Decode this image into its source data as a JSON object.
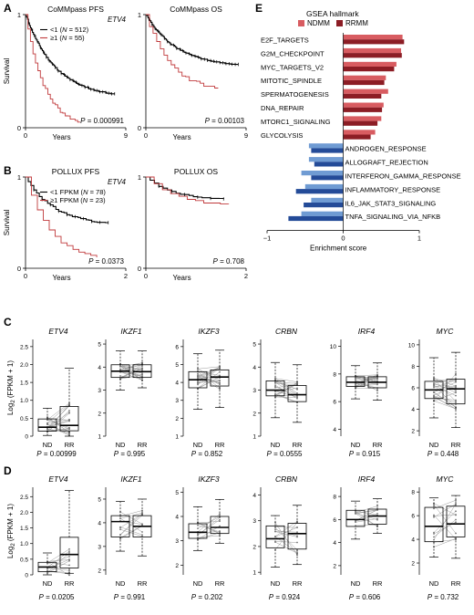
{
  "panel_letters": {
    "a": "A",
    "b": "B",
    "c": "C",
    "d": "D",
    "e": "E"
  },
  "colors": {
    "black": "#000000",
    "red": "#c0393b",
    "ndmm": "#d85c61",
    "rrmm": "#8c1d25",
    "blue_light": "#6f9bd3",
    "blue_dark": "#244b98",
    "box_fill": "#ffffff"
  },
  "survival": {
    "ylabel": "Survival",
    "xlabel": "Years",
    "panels": [
      {
        "id": "a_pfs",
        "title": "CoMMpass PFS",
        "gene": "ETV4",
        "legend": [
          {
            "pre": "<1 (",
            "mid": "N",
            "post": " = 512)"
          },
          {
            "pre": "≥1 (",
            "mid": "N",
            "post": " = 55)"
          }
        ],
        "xticks": [
          "0",
          "9"
        ],
        "xmax": 9,
        "p_label": "P",
        "p_value": " = 0.000991"
      },
      {
        "id": "a_os",
        "title": "CoMMpass OS",
        "xticks": [
          "0",
          "9"
        ],
        "xmax": 9,
        "p_label": "P",
        "p_value": " = 0.00103"
      },
      {
        "id": "b_pfs",
        "title": "POLLUX PFS",
        "gene": "ETV4",
        "legend": [
          {
            "pre": "<1 FPKM (",
            "mid": "N",
            "post": " = 78)"
          },
          {
            "pre": "≥1 FPKM (",
            "mid": "N",
            "post": " = 23)"
          }
        ],
        "xticks": [
          "0",
          "2"
        ],
        "xmax": 2,
        "p_label": "P",
        "p_value": " = 0.0373"
      },
      {
        "id": "b_os",
        "title": "POLLUX OS",
        "xticks": [
          "0",
          "2"
        ],
        "xmax": 2,
        "p_label": "P",
        "p_value": " = 0.708"
      }
    ],
    "yticks": [
      "0",
      "1"
    ]
  },
  "gsea": {
    "title": "GSEA hallmark",
    "legend": [
      "NDMM",
      "RRMM"
    ],
    "xlabel": "Enrichment score",
    "xticks": [
      "−1",
      "0",
      "1"
    ],
    "chart_data": {
      "type": "bar",
      "orientation": "horizontal",
      "categories": [
        "E2F_TARGETS",
        "G2M_CHECKPOINT",
        "MYC_TARGETS_V2",
        "MITOTIC_SPINDLE",
        "SPERMATOGENESIS",
        "DNA_REPAIR",
        "MTORC1_SIGNALING",
        "GLYCOLYSIS",
        "ANDROGEN_RESPONSE",
        "ALLOGRAFT_REJECTION",
        "INTERFERON_GAMMA_RESPONSE",
        "INFLAMMATORY_RESPONSE",
        "IL6_JAK_STAT3_SIGNALING",
        "TNFA_SIGNALING_VIA_NFKB"
      ],
      "series": [
        {
          "name": "NDMM",
          "values": [
            0.78,
            0.76,
            0.7,
            0.56,
            0.59,
            0.53,
            0.5,
            0.42,
            -0.45,
            -0.45,
            -0.55,
            -0.5,
            -0.42,
            -0.55
          ]
        },
        {
          "name": "RRMM",
          "values": [
            0.8,
            0.77,
            0.67,
            0.54,
            0.5,
            0.51,
            0.45,
            0.36,
            -0.42,
            -0.38,
            -0.42,
            -0.62,
            -0.52,
            -0.72
          ]
        }
      ],
      "xlim": [
        -1,
        1
      ]
    }
  },
  "boxplots": {
    "ylabel_pre": "Log",
    "ylabel_sub": "2",
    "ylabel_post": " (FPKM + 1)",
    "xcats": [
      "ND",
      "RR"
    ],
    "p_label": "P",
    "rows": [
      {
        "panels": [
          {
            "gene": "ETV4",
            "ticks": [
              "0",
              "0.5",
              "1.0",
              "1.5",
              "2.0",
              "2.5"
            ],
            "ylim": [
              0,
              2.7
            ],
            "p_value": " = 0.00999",
            "nd": [
              0.02,
              0.14,
              0.25,
              0.48,
              0.78
            ],
            "rr": [
              0.0,
              0.15,
              0.3,
              0.83,
              1.9
            ]
          },
          {
            "gene": "IKZF1",
            "ticks": [
              "1",
              "2",
              "3",
              "4",
              "5"
            ],
            "ylim": [
              1,
              5.2
            ],
            "p_value": " = 0.995",
            "nd": [
              3.0,
              3.55,
              3.82,
              4.1,
              4.7
            ],
            "rr": [
              3.1,
              3.55,
              3.8,
              4.1,
              4.7
            ]
          },
          {
            "gene": "IKZF3",
            "ticks": [
              "1",
              "2",
              "3",
              "4",
              "5",
              "6"
            ],
            "ylim": [
              1,
              6.4
            ],
            "p_value": " = 0.852",
            "nd": [
              2.5,
              3.7,
              4.15,
              4.6,
              5.6
            ],
            "rr": [
              2.6,
              3.8,
              4.3,
              4.7,
              5.8
            ]
          },
          {
            "gene": "CRBN",
            "ticks": [
              "1",
              "2",
              "3",
              "4",
              "5"
            ],
            "ylim": [
              1,
              5.2
            ],
            "p_value": " = 0.0555",
            "nd": [
              1.8,
              2.75,
              3.0,
              3.4,
              4.2
            ],
            "rr": [
              1.6,
              2.5,
              2.8,
              3.2,
              4.1
            ]
          },
          {
            "gene": "IRF4",
            "ticks": [
              "4",
              "6",
              "8",
              "10"
            ],
            "ylim": [
              3.5,
              10.5
            ],
            "p_value": " = 0.915",
            "nd": [
              6.2,
              7.1,
              7.4,
              7.8,
              8.6
            ],
            "rr": [
              6.1,
              7.0,
              7.4,
              7.8,
              8.8
            ]
          },
          {
            "gene": "MYC",
            "ticks": [
              "2",
              "4",
              "6",
              "8",
              "10"
            ],
            "ylim": [
              1.5,
              10.5
            ],
            "p_value": " = 0.448",
            "nd": [
              3.2,
              5.0,
              5.8,
              6.6,
              8.8
            ],
            "rr": [
              2.3,
              4.5,
              5.9,
              6.8,
              9.3
            ]
          }
        ]
      },
      {
        "panels": [
          {
            "gene": "ETV4",
            "ticks": [
              "0",
              "0.5",
              "1.0",
              "1.5",
              "2.0",
              "2.5"
            ],
            "ylim": [
              0,
              2.8
            ],
            "p_value": " = 0.0205",
            "nd": [
              0.0,
              0.1,
              0.25,
              0.4,
              0.7
            ],
            "rr": [
              0.05,
              0.22,
              0.65,
              1.2,
              2.7
            ]
          },
          {
            "gene": "IKZF1",
            "ticks": [
              "2",
              "3",
              "4",
              "5"
            ],
            "ylim": [
              1.8,
              5.5
            ],
            "p_value": " = 0.991",
            "nd": [
              2.8,
              3.4,
              4.05,
              4.3,
              4.9
            ],
            "rr": [
              2.6,
              3.4,
              3.85,
              4.3,
              5.0
            ]
          },
          {
            "gene": "IKZF3",
            "ticks": [
              "2",
              "3",
              "4",
              "5"
            ],
            "ylim": [
              1.6,
              5.2
            ],
            "p_value": " = 0.202",
            "nd": [
              2.6,
              3.1,
              3.35,
              3.7,
              4.4
            ],
            "rr": [
              2.9,
              3.3,
              3.55,
              4.0,
              4.7
            ]
          },
          {
            "gene": "CRBN",
            "ticks": [
              "1",
              "2",
              "3",
              "4"
            ],
            "ylim": [
              0.9,
              4.3
            ],
            "p_value": " = 0.924",
            "nd": [
              1.2,
              1.95,
              2.3,
              2.8,
              3.2
            ],
            "rr": [
              1.3,
              1.9,
              2.5,
              2.9,
              3.6
            ]
          },
          {
            "gene": "IRF4",
            "ticks": [
              "2",
              "4",
              "6",
              "8"
            ],
            "ylim": [
              1.2,
              8.8
            ],
            "p_value": " = 0.606",
            "nd": [
              4.3,
              5.4,
              6.0,
              6.8,
              7.6
            ],
            "rr": [
              4.8,
              5.6,
              6.3,
              6.9,
              7.8
            ]
          },
          {
            "gene": "MYC",
            "ticks": [
              "2",
              "4",
              "6",
              "8"
            ],
            "ylim": [
              1.0,
              8.4
            ],
            "p_value": " = 0.732",
            "nd": [
              2.5,
              3.8,
              5.1,
              6.7,
              7.5
            ],
            "rr": [
              2.4,
              4.2,
              5.3,
              6.8,
              7.7
            ]
          }
        ]
      }
    ]
  }
}
